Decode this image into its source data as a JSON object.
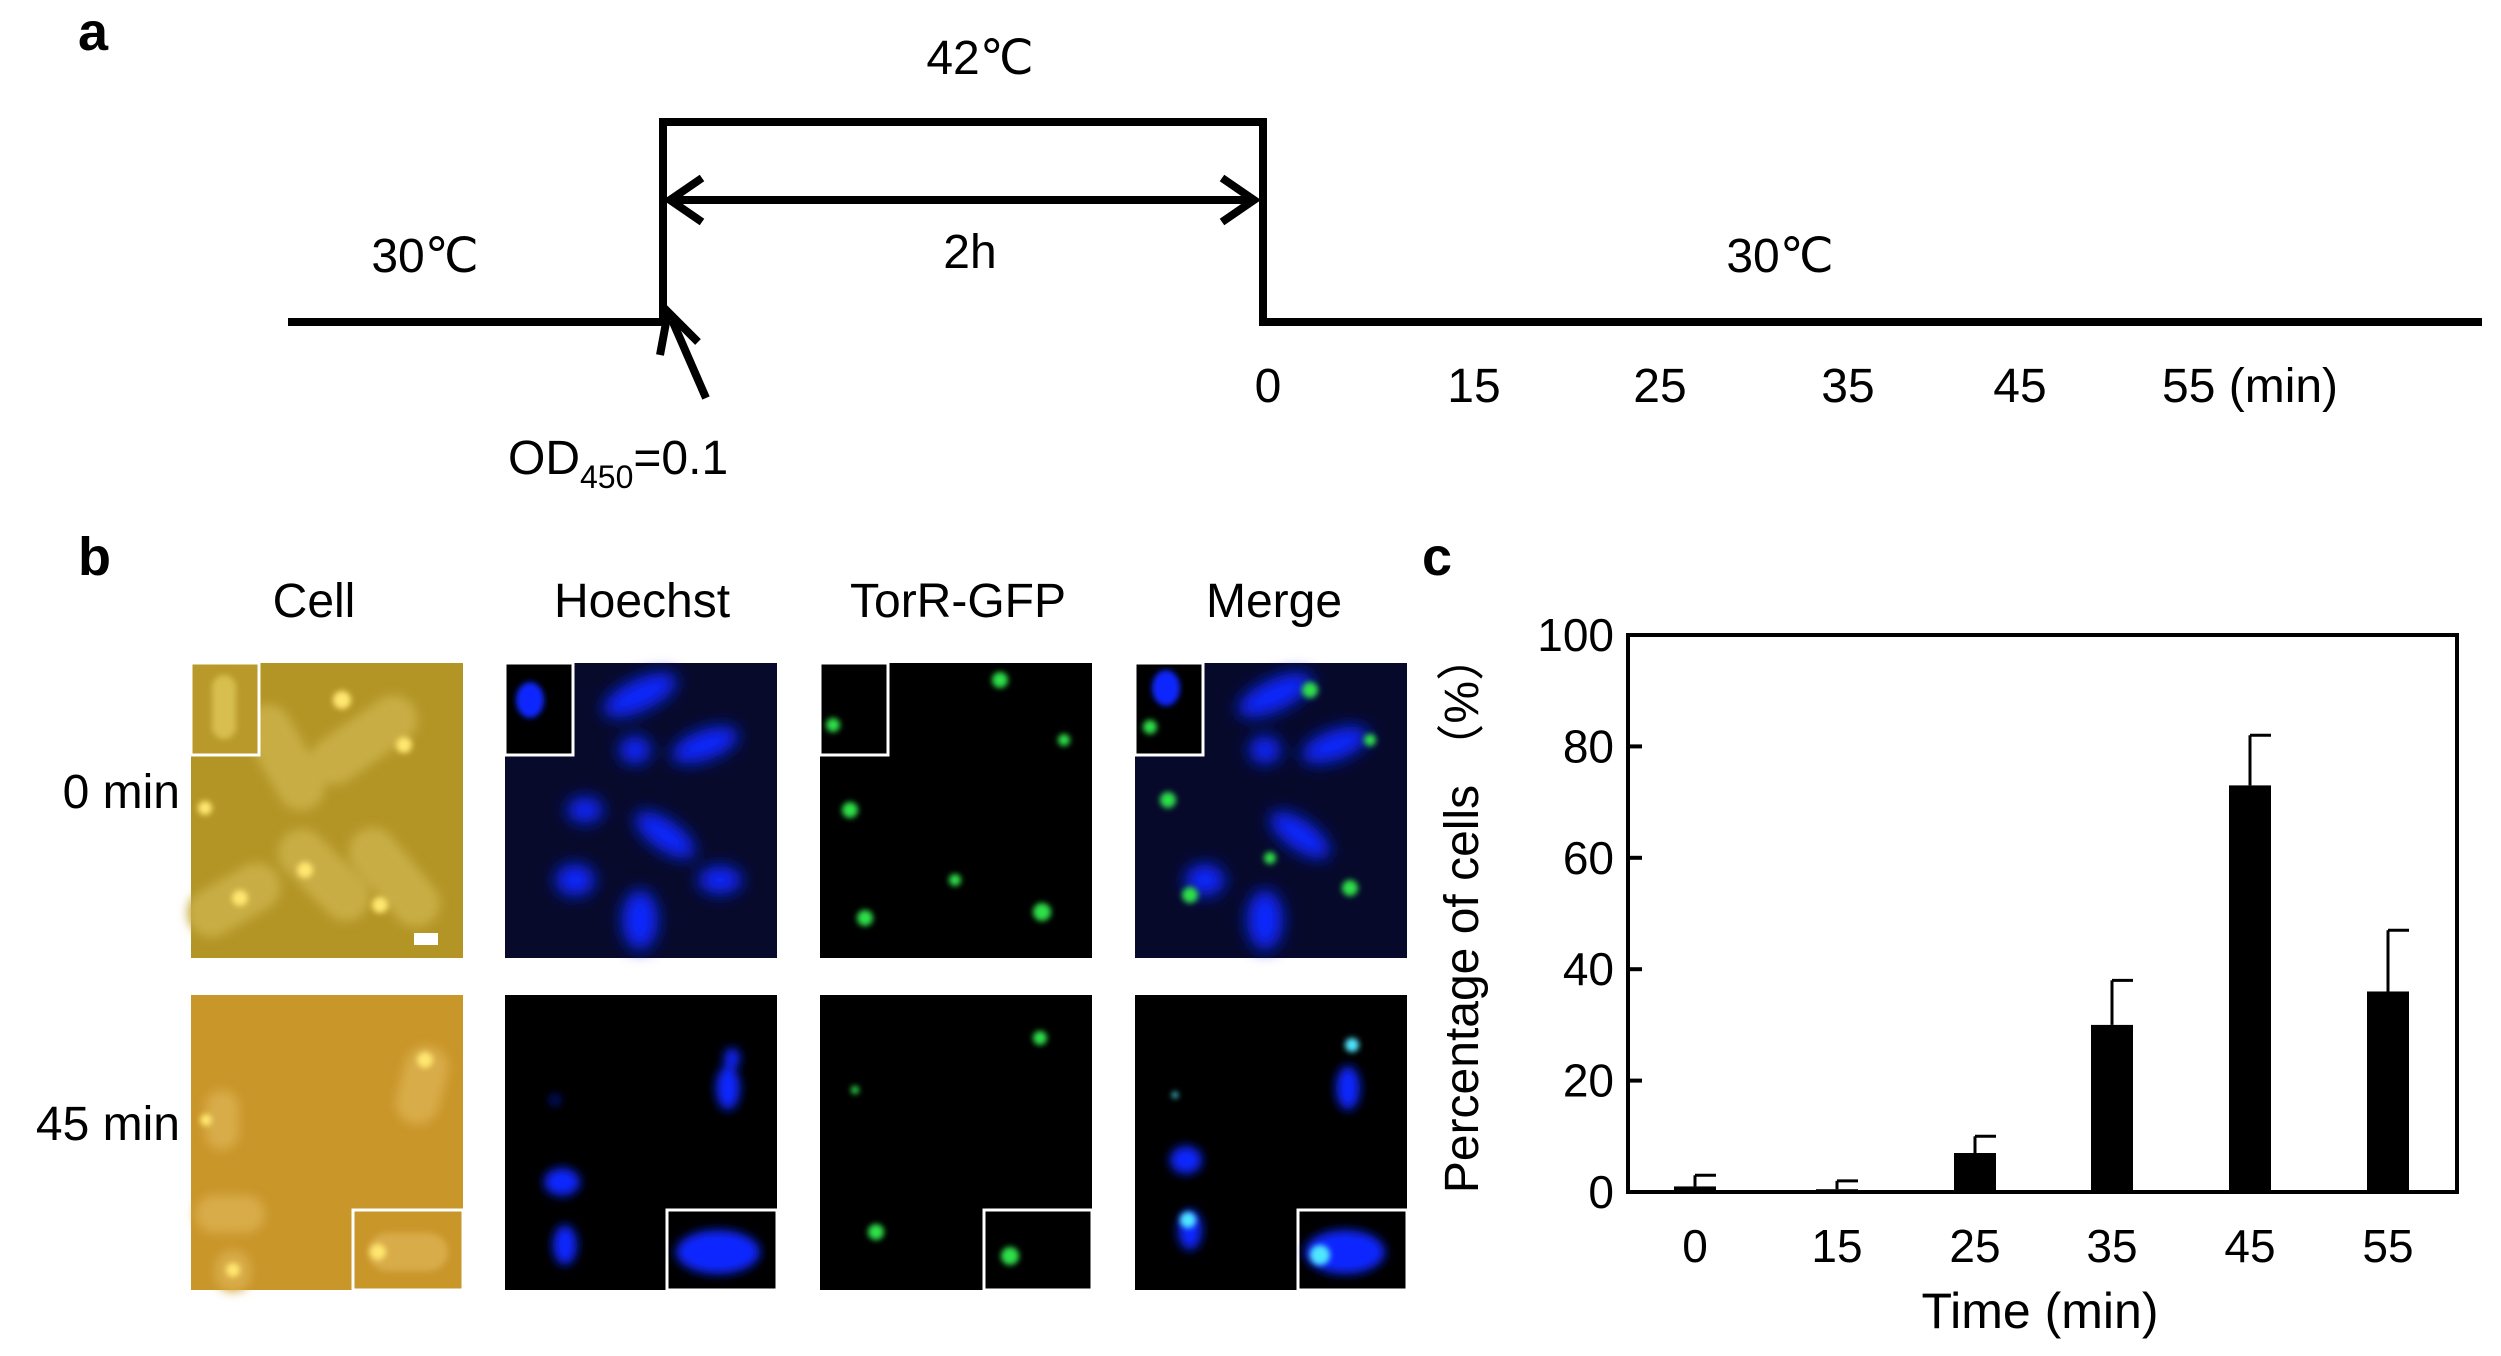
{
  "panel_a": {
    "label": "a",
    "temp_high": "42℃",
    "temp_left": "30℃",
    "temp_right": "30℃",
    "duration": "2h",
    "od_label": "OD",
    "od_sub": "450",
    "od_value": "=0.1",
    "timepoints": [
      "0",
      "15",
      "25",
      "35",
      "45",
      "55 (min)"
    ]
  },
  "panel_b": {
    "label": "b",
    "columns": [
      "Cell",
      "Hoechst",
      "TorR-GFP",
      "Merge"
    ],
    "rows": [
      "0 min",
      "45 min"
    ],
    "colors": {
      "cell_0": "#b39526",
      "cell_45": "#c9962a",
      "hoechst": "#1028ff",
      "gfp": "#2fe04a",
      "merge_overlap": "#4fe7ff"
    }
  },
  "panel_c": {
    "label": "c"
  },
  "chart_data": {
    "type": "bar",
    "categories": [
      "0",
      "15",
      "25",
      "35",
      "45",
      "55"
    ],
    "values": [
      1,
      0.5,
      7,
      30,
      73,
      36
    ],
    "errors": [
      2,
      1.5,
      3,
      8,
      9,
      11
    ],
    "xlabel": "Time (min)",
    "ylabel": "Percentage of cells （%）",
    "ylim": [
      0,
      100
    ],
    "yticks": [
      "0",
      "20",
      "40",
      "60",
      "80",
      "100"
    ],
    "bar_color": "#000000",
    "grid": false
  }
}
